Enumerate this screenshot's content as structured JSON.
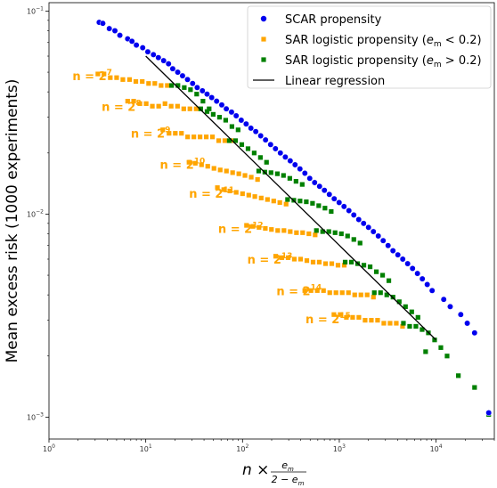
{
  "chart_data": {
    "type": "scatter",
    "xscale": "log",
    "yscale": "log",
    "xlim": [
      1,
      40000
    ],
    "ylim": [
      0.00078,
      0.11
    ],
    "grid": false,
    "legend_position": "top-right",
    "ylabel": "Mean excess risk (1000 experiments)",
    "xlabel": {
      "main": "n ×",
      "numerator": "e",
      "numerator_sub": "m",
      "denominator": "2 − e",
      "denominator_sub": "m"
    },
    "x_ticks": [
      {
        "value": 1,
        "base": "10",
        "exp": "0"
      },
      {
        "value": 10,
        "base": "10",
        "exp": "1"
      },
      {
        "value": 100,
        "base": "10",
        "exp": "2"
      },
      {
        "value": 1000,
        "base": "10",
        "exp": "3"
      },
      {
        "value": 10000,
        "base": "10",
        "exp": "4"
      }
    ],
    "y_ticks": [
      {
        "value": 0.1,
        "base": "10",
        "exp": "−1"
      },
      {
        "value": 0.01,
        "base": "10",
        "exp": "−2"
      },
      {
        "value": 0.001,
        "base": "10",
        "exp": "−3"
      }
    ],
    "legend": [
      {
        "label": "SCAR propensity",
        "marker": "circle",
        "color": "#0000ee"
      },
      {
        "label": "SAR logistic propensity (",
        "math": "e",
        "sub": "m",
        "tail": " < 0.2)",
        "marker": "square",
        "color": "#ffa500"
      },
      {
        "label": "SAR logistic propensity (",
        "math": "e",
        "sub": "m",
        "tail": " > 0.2)",
        "marker": "square",
        "color": "#008000"
      },
      {
        "label": "Linear regression",
        "marker": "line",
        "color": "#000000"
      }
    ],
    "series": [
      {
        "name": "SCAR propensity",
        "marker": "circle",
        "color": "#0000ee",
        "points": [
          [
            3.3,
            0.088
          ],
          [
            3.6,
            0.087
          ],
          [
            4.2,
            0.082
          ],
          [
            4.8,
            0.08
          ],
          [
            5.4,
            0.076
          ],
          [
            6.5,
            0.073
          ],
          [
            7.2,
            0.071
          ],
          [
            8.0,
            0.068
          ],
          [
            9.3,
            0.066
          ],
          [
            10.5,
            0.063
          ],
          [
            12,
            0.061
          ],
          [
            13.5,
            0.059
          ],
          [
            15.3,
            0.057
          ],
          [
            17.2,
            0.055
          ],
          [
            19,
            0.052
          ],
          [
            21.4,
            0.05
          ],
          [
            24,
            0.048
          ],
          [
            27,
            0.046
          ],
          [
            30.5,
            0.044
          ],
          [
            34,
            0.042
          ],
          [
            38.5,
            0.0405
          ],
          [
            43,
            0.039
          ],
          [
            48,
            0.0375
          ],
          [
            54,
            0.036
          ],
          [
            61,
            0.0345
          ],
          [
            68,
            0.033
          ],
          [
            77,
            0.0318
          ],
          [
            86,
            0.0305
          ],
          [
            97,
            0.029
          ],
          [
            109,
            0.0278
          ],
          [
            122,
            0.0265
          ],
          [
            137,
            0.0255
          ],
          [
            154,
            0.0243
          ],
          [
            173,
            0.0232
          ],
          [
            195,
            0.022
          ],
          [
            219,
            0.021
          ],
          [
            246,
            0.02
          ],
          [
            277,
            0.0191
          ],
          [
            311,
            0.0183
          ],
          [
            349,
            0.0175
          ],
          [
            392,
            0.0167
          ],
          [
            441,
            0.0159
          ],
          [
            495,
            0.015
          ],
          [
            556,
            0.0143
          ],
          [
            625,
            0.0137
          ],
          [
            702,
            0.0131
          ],
          [
            789,
            0.0125
          ],
          [
            886,
            0.0119
          ],
          [
            996,
            0.0114
          ],
          [
            1119,
            0.0109
          ],
          [
            1257,
            0.0104
          ],
          [
            1413,
            0.0099
          ],
          [
            1587,
            0.0094
          ],
          [
            1783,
            0.009
          ],
          [
            2003,
            0.0086
          ],
          [
            2251,
            0.0082
          ],
          [
            2529,
            0.0078
          ],
          [
            2841,
            0.0074
          ],
          [
            3192,
            0.007
          ],
          [
            3586,
            0.0066
          ],
          [
            4029,
            0.0063
          ],
          [
            4527,
            0.006
          ],
          [
            5086,
            0.0057
          ],
          [
            5714,
            0.0054
          ],
          [
            6420,
            0.0051
          ],
          [
            7213,
            0.0048
          ],
          [
            8104,
            0.0045
          ],
          [
            9105,
            0.0042
          ],
          [
            12000,
            0.0038
          ],
          [
            14000,
            0.0035
          ],
          [
            18000,
            0.0032
          ],
          [
            21000,
            0.0029
          ],
          [
            25000,
            0.0026
          ],
          [
            35000,
            0.00105
          ]
        ]
      },
      {
        "name": "SAR logistic propensity (e_m < 0.2)",
        "marker": "square",
        "color": "#ffa500",
        "points": [
          [
            3.2,
            0.049
          ],
          [
            3.7,
            0.049
          ],
          [
            4.3,
            0.047
          ],
          [
            5.0,
            0.047
          ],
          [
            5.8,
            0.046
          ],
          [
            6.8,
            0.046
          ],
          [
            7.9,
            0.045
          ],
          [
            9.2,
            0.045
          ],
          [
            10.7,
            0.044
          ],
          [
            12.4,
            0.044
          ],
          [
            14.4,
            0.043
          ],
          [
            16.7,
            0.043
          ],
          [
            6.5,
            0.036
          ],
          [
            7.5,
            0.036
          ],
          [
            8.7,
            0.035
          ],
          [
            10.1,
            0.035
          ],
          [
            11.7,
            0.034
          ],
          [
            13.6,
            0.034
          ],
          [
            15.8,
            0.035
          ],
          [
            18.3,
            0.034
          ],
          [
            21.3,
            0.034
          ],
          [
            24.7,
            0.033
          ],
          [
            28.6,
            0.033
          ],
          [
            33.2,
            0.033
          ],
          [
            15,
            0.026
          ],
          [
            17.4,
            0.025
          ],
          [
            20.2,
            0.025
          ],
          [
            23.4,
            0.025
          ],
          [
            27.1,
            0.024
          ],
          [
            31.4,
            0.024
          ],
          [
            36.4,
            0.024
          ],
          [
            42.2,
            0.024
          ],
          [
            48.9,
            0.024
          ],
          [
            56.7,
            0.023
          ],
          [
            65.7,
            0.023
          ],
          [
            76.2,
            0.023
          ],
          [
            28,
            0.018
          ],
          [
            32.5,
            0.0178
          ],
          [
            37.7,
            0.0175
          ],
          [
            43.7,
            0.0172
          ],
          [
            50.7,
            0.0168
          ],
          [
            58.8,
            0.0165
          ],
          [
            68.2,
            0.0163
          ],
          [
            79,
            0.016
          ],
          [
            91.6,
            0.0158
          ],
          [
            106,
            0.0155
          ],
          [
            123,
            0.0152
          ],
          [
            143,
            0.0148
          ],
          [
            55,
            0.0135
          ],
          [
            64,
            0.0132
          ],
          [
            74,
            0.013
          ],
          [
            86,
            0.0128
          ],
          [
            100,
            0.0126
          ],
          [
            116,
            0.0124
          ],
          [
            134,
            0.0122
          ],
          [
            156,
            0.012
          ],
          [
            181,
            0.0118
          ],
          [
            210,
            0.0116
          ],
          [
            243,
            0.0114
          ],
          [
            282,
            0.0112
          ],
          [
            110,
            0.0088
          ],
          [
            128,
            0.0087
          ],
          [
            148,
            0.0086
          ],
          [
            172,
            0.0085
          ],
          [
            199,
            0.0084
          ],
          [
            231,
            0.0083
          ],
          [
            268,
            0.0083
          ],
          [
            311,
            0.0082
          ],
          [
            361,
            0.0081
          ],
          [
            418,
            0.0081
          ],
          [
            485,
            0.008
          ],
          [
            563,
            0.0079
          ],
          [
            220,
            0.0062
          ],
          [
            255,
            0.0061
          ],
          [
            296,
            0.0061
          ],
          [
            343,
            0.006
          ],
          [
            398,
            0.006
          ],
          [
            462,
            0.0059
          ],
          [
            536,
            0.0058
          ],
          [
            621,
            0.0058
          ],
          [
            721,
            0.0057
          ],
          [
            836,
            0.0057
          ],
          [
            970,
            0.0056
          ],
          [
            1125,
            0.0056
          ],
          [
            440,
            0.0042
          ],
          [
            510,
            0.0042
          ],
          [
            592,
            0.0042
          ],
          [
            687,
            0.0042
          ],
          [
            797,
            0.0041
          ],
          [
            924,
            0.0041
          ],
          [
            1072,
            0.0041
          ],
          [
            1244,
            0.0041
          ],
          [
            1443,
            0.004
          ],
          [
            1674,
            0.004
          ],
          [
            1941,
            0.004
          ],
          [
            2252,
            0.0039
          ],
          [
            880,
            0.0032
          ],
          [
            1021,
            0.0032
          ],
          [
            1184,
            0.0031
          ],
          [
            1374,
            0.0031
          ],
          [
            1593,
            0.0031
          ],
          [
            1848,
            0.003
          ],
          [
            2144,
            0.003
          ],
          [
            2487,
            0.003
          ],
          [
            2885,
            0.0029
          ],
          [
            3347,
            0.0029
          ],
          [
            3882,
            0.0029
          ],
          [
            4503,
            0.0028
          ]
        ]
      },
      {
        "name": "SAR logistic propensity (e_m > 0.2)",
        "marker": "square",
        "color": "#008000",
        "points": [
          [
            18.5,
            0.043
          ],
          [
            21.5,
            0.043
          ],
          [
            25,
            0.042
          ],
          [
            29,
            0.041
          ],
          [
            33.6,
            0.039
          ],
          [
            39,
            0.036
          ],
          [
            45.2,
            0.033
          ],
          [
            37,
            0.033
          ],
          [
            43,
            0.032
          ],
          [
            49.8,
            0.031
          ],
          [
            57.8,
            0.03
          ],
          [
            67,
            0.029
          ],
          [
            77.7,
            0.027
          ],
          [
            90,
            0.026
          ],
          [
            73,
            0.023
          ],
          [
            84.7,
            0.023
          ],
          [
            98.2,
            0.022
          ],
          [
            114,
            0.021
          ],
          [
            132,
            0.02
          ],
          [
            153,
            0.019
          ],
          [
            177,
            0.018
          ],
          [
            147,
            0.0163
          ],
          [
            170,
            0.0161
          ],
          [
            197,
            0.016
          ],
          [
            229,
            0.0158
          ],
          [
            265,
            0.0155
          ],
          [
            308,
            0.015
          ],
          [
            357,
            0.0145
          ],
          [
            414,
            0.014
          ],
          [
            292,
            0.0118
          ],
          [
            339,
            0.0117
          ],
          [
            393,
            0.0116
          ],
          [
            456,
            0.0115
          ],
          [
            529,
            0.0113
          ],
          [
            613,
            0.011
          ],
          [
            711,
            0.0107
          ],
          [
            825,
            0.0103
          ],
          [
            580,
            0.0083
          ],
          [
            673,
            0.0082
          ],
          [
            780,
            0.0082
          ],
          [
            905,
            0.0081
          ],
          [
            1050,
            0.008
          ],
          [
            1218,
            0.0078
          ],
          [
            1413,
            0.0075
          ],
          [
            1639,
            0.0072
          ],
          [
            1150,
            0.0058
          ],
          [
            1334,
            0.0058
          ],
          [
            1547,
            0.0057
          ],
          [
            1795,
            0.0056
          ],
          [
            2082,
            0.0055
          ],
          [
            2415,
            0.0052
          ],
          [
            2802,
            0.005
          ],
          [
            3250,
            0.0047
          ],
          [
            2300,
            0.0041
          ],
          [
            2668,
            0.0041
          ],
          [
            3095,
            0.004
          ],
          [
            3590,
            0.0039
          ],
          [
            4165,
            0.0037
          ],
          [
            4831,
            0.0035
          ],
          [
            5604,
            0.0033
          ],
          [
            6500,
            0.0031
          ],
          [
            4600,
            0.0029
          ],
          [
            5336,
            0.0028
          ],
          [
            6190,
            0.0028
          ],
          [
            7180,
            0.0027
          ],
          [
            8329,
            0.0026
          ],
          [
            9662,
            0.0024
          ],
          [
            11207,
            0.0022
          ],
          [
            13000,
            0.002
          ],
          [
            7800,
            0.0021
          ],
          [
            17000,
            0.0016
          ],
          [
            25000,
            0.0014
          ],
          [
            35000,
            0.00103
          ]
        ]
      },
      {
        "name": "Linear regression",
        "marker": "line",
        "color": "#000000",
        "points": [
          [
            10,
            0.06
          ],
          [
            10000,
            0.0024
          ]
        ]
      }
    ],
    "annotations": [
      {
        "base": "n = 2",
        "exp": "7",
        "x": 1.75,
        "y": 0.048
      },
      {
        "base": "n = 2",
        "exp": "8",
        "x": 3.5,
        "y": 0.034
      },
      {
        "base": "n = 2",
        "exp": "9",
        "x": 7.0,
        "y": 0.025
      },
      {
        "base": "n = 2",
        "exp": "10",
        "x": 14,
        "y": 0.0176
      },
      {
        "base": "n = 2",
        "exp": "11",
        "x": 28,
        "y": 0.0127
      },
      {
        "base": "n = 2",
        "exp": "12",
        "x": 56,
        "y": 0.0085
      },
      {
        "base": "n = 2",
        "exp": "13",
        "x": 112,
        "y": 0.006
      },
      {
        "base": "n = 2",
        "exp": "14",
        "x": 224,
        "y": 0.0042
      },
      {
        "base": "n = 2",
        "exp": "15",
        "x": 448,
        "y": 0.00305
      }
    ],
    "annotation_color": "#ffa500"
  }
}
